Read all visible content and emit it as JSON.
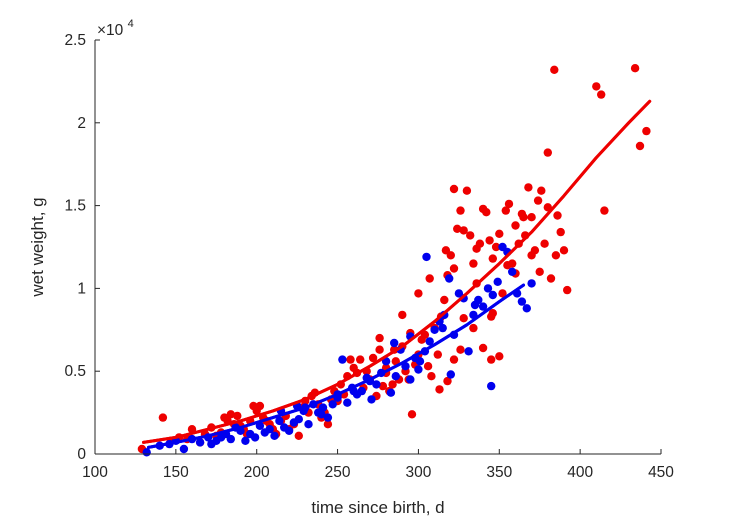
{
  "chart_data": {
    "type": "scatter",
    "xlabel": "time since birth, d",
    "ylabel": "wet weight, g",
    "exponent_label": "×10",
    "exponent_power": "4",
    "xlim": [
      100,
      450
    ],
    "ylim": [
      0,
      25000
    ],
    "xticks": [
      100,
      150,
      200,
      250,
      300,
      350,
      400,
      450
    ],
    "xtick_labels": [
      "100",
      "150",
      "200",
      "250",
      "300",
      "350",
      "400",
      "450"
    ],
    "yticks": [
      0,
      5000,
      10000,
      15000,
      20000,
      25000
    ],
    "ytick_labels": [
      "0",
      "0.5",
      "1",
      "1.5",
      "2",
      "2.5"
    ],
    "grid": false,
    "series": [
      {
        "color": "#ee0000",
        "points": [
          [
            129,
            300
          ],
          [
            142,
            2200
          ],
          [
            147,
            800
          ],
          [
            152,
            1000
          ],
          [
            157,
            900
          ],
          [
            160,
            1500
          ],
          [
            165,
            700
          ],
          [
            168,
            1200
          ],
          [
            172,
            1600
          ],
          [
            175,
            1100
          ],
          [
            178,
            1300
          ],
          [
            180,
            2200
          ],
          [
            182,
            2000
          ],
          [
            184,
            2400
          ],
          [
            186,
            1800
          ],
          [
            188,
            2300
          ],
          [
            190,
            1700
          ],
          [
            192,
            1500
          ],
          [
            194,
            1200
          ],
          [
            196,
            2000
          ],
          [
            198,
            2900
          ],
          [
            200,
            2600
          ],
          [
            202,
            2900
          ],
          [
            204,
            2200
          ],
          [
            206,
            2000
          ],
          [
            208,
            1800
          ],
          [
            210,
            1500
          ],
          [
            212,
            1200
          ],
          [
            215,
            2000
          ],
          [
            218,
            2300
          ],
          [
            220,
            1500
          ],
          [
            223,
            1800
          ],
          [
            226,
            1100
          ],
          [
            228,
            2800
          ],
          [
            230,
            3200
          ],
          [
            232,
            2500
          ],
          [
            234,
            3500
          ],
          [
            236,
            3700
          ],
          [
            238,
            3000
          ],
          [
            240,
            2200
          ],
          [
            242,
            2500
          ],
          [
            244,
            1800
          ],
          [
            246,
            3300
          ],
          [
            248,
            3800
          ],
          [
            250,
            3200
          ],
          [
            252,
            4200
          ],
          [
            254,
            3600
          ],
          [
            256,
            4700
          ],
          [
            258,
            5700
          ],
          [
            260,
            5200
          ],
          [
            262,
            4900
          ],
          [
            264,
            5700
          ],
          [
            266,
            4000
          ],
          [
            268,
            5000
          ],
          [
            270,
            4500
          ],
          [
            272,
            5800
          ],
          [
            274,
            3500
          ],
          [
            276,
            6300
          ],
          [
            278,
            4100
          ],
          [
            280,
            4900
          ],
          [
            282,
            3800
          ],
          [
            284,
            4200
          ],
          [
            286,
            5600
          ],
          [
            288,
            4500
          ],
          [
            290,
            6500
          ],
          [
            292,
            5000
          ],
          [
            294,
            4500
          ],
          [
            296,
            2400
          ],
          [
            298,
            5400
          ],
          [
            300,
            6000
          ],
          [
            302,
            6900
          ],
          [
            304,
            7200
          ],
          [
            306,
            5300
          ],
          [
            308,
            4700
          ],
          [
            310,
            7600
          ],
          [
            312,
            6000
          ],
          [
            314,
            8300
          ],
          [
            316,
            9300
          ],
          [
            318,
            10800
          ],
          [
            320,
            12000
          ],
          [
            322,
            11200
          ],
          [
            324,
            13600
          ],
          [
            326,
            14700
          ],
          [
            328,
            13500
          ],
          [
            330,
            15900
          ],
          [
            332,
            13200
          ],
          [
            334,
            11500
          ],
          [
            336,
            10300
          ],
          [
            338,
            12700
          ],
          [
            340,
            14800
          ],
          [
            342,
            14600
          ],
          [
            344,
            12900
          ],
          [
            346,
            11800
          ],
          [
            348,
            12500
          ],
          [
            350,
            13300
          ],
          [
            352,
            9700
          ],
          [
            354,
            14700
          ],
          [
            356,
            15100
          ],
          [
            358,
            11500
          ],
          [
            360,
            13800
          ],
          [
            362,
            12700
          ],
          [
            364,
            14500
          ],
          [
            366,
            13200
          ],
          [
            368,
            16100
          ],
          [
            370,
            14300
          ],
          [
            372,
            12300
          ],
          [
            374,
            15300
          ],
          [
            376,
            15900
          ],
          [
            378,
            12700
          ],
          [
            380,
            14900
          ],
          [
            382,
            10600
          ],
          [
            384,
            23200
          ],
          [
            386,
            14400
          ],
          [
            388,
            13400
          ],
          [
            390,
            12300
          ],
          [
            392,
            9900
          ],
          [
            410,
            22200
          ],
          [
            413,
            21700
          ],
          [
            415,
            14700
          ],
          [
            434,
            23300
          ],
          [
            437,
            18600
          ],
          [
            441,
            19500
          ],
          [
            307,
            10600
          ],
          [
            317,
            12300
          ],
          [
            322,
            16000
          ],
          [
            336,
            12400
          ],
          [
            345,
            8300
          ],
          [
            355,
            11400
          ],
          [
            360,
            10900
          ],
          [
            365,
            14300
          ],
          [
            370,
            12000
          ],
          [
            375,
            11000
          ],
          [
            380,
            18200
          ],
          [
            385,
            12000
          ],
          [
            300,
            9700
          ],
          [
            295,
            7300
          ],
          [
            290,
            8400
          ],
          [
            285,
            6300
          ],
          [
            280,
            5200
          ],
          [
            276,
            7000
          ],
          [
            313,
            3900
          ],
          [
            318,
            4400
          ],
          [
            322,
            5700
          ],
          [
            328,
            8200
          ],
          [
            334,
            7600
          ],
          [
            340,
            6400
          ],
          [
            346,
            8500
          ],
          [
            350,
            5900
          ],
          [
            326,
            6300
          ],
          [
            345,
            5700
          ]
        ]
      },
      {
        "color": "#0000ee",
        "points": [
          [
            132,
            100
          ],
          [
            140,
            500
          ],
          [
            146,
            600
          ],
          [
            150,
            800
          ],
          [
            155,
            300
          ],
          [
            160,
            900
          ],
          [
            165,
            700
          ],
          [
            170,
            1000
          ],
          [
            172,
            600
          ],
          [
            175,
            800
          ],
          [
            178,
            1000
          ],
          [
            181,
            1200
          ],
          [
            184,
            900
          ],
          [
            187,
            1600
          ],
          [
            190,
            1400
          ],
          [
            193,
            800
          ],
          [
            196,
            1200
          ],
          [
            199,
            1000
          ],
          [
            202,
            1700
          ],
          [
            205,
            1300
          ],
          [
            208,
            1500
          ],
          [
            211,
            1100
          ],
          [
            214,
            2000
          ],
          [
            217,
            1600
          ],
          [
            220,
            1400
          ],
          [
            223,
            1900
          ],
          [
            226,
            2100
          ],
          [
            229,
            2600
          ],
          [
            232,
            1800
          ],
          [
            235,
            3000
          ],
          [
            238,
            2500
          ],
          [
            241,
            2800
          ],
          [
            244,
            2200
          ],
          [
            247,
            3000
          ],
          [
            250,
            3600
          ],
          [
            253,
            5700
          ],
          [
            256,
            3100
          ],
          [
            259,
            4000
          ],
          [
            262,
            3600
          ],
          [
            265,
            3800
          ],
          [
            268,
            4600
          ],
          [
            271,
            3300
          ],
          [
            274,
            4200
          ],
          [
            277,
            4900
          ],
          [
            280,
            5600
          ],
          [
            283,
            3700
          ],
          [
            286,
            4700
          ],
          [
            289,
            6300
          ],
          [
            292,
            5300
          ],
          [
            295,
            7100
          ],
          [
            298,
            5800
          ],
          [
            301,
            5600
          ],
          [
            304,
            6200
          ],
          [
            307,
            6800
          ],
          [
            310,
            7500
          ],
          [
            313,
            8000
          ],
          [
            316,
            8400
          ],
          [
            319,
            10600
          ],
          [
            322,
            7200
          ],
          [
            325,
            9700
          ],
          [
            328,
            9400
          ],
          [
            331,
            6200
          ],
          [
            334,
            8400
          ],
          [
            337,
            9300
          ],
          [
            340,
            8900
          ],
          [
            343,
            10000
          ],
          [
            346,
            9600
          ],
          [
            349,
            10400
          ],
          [
            352,
            12500
          ],
          [
            355,
            12200
          ],
          [
            358,
            11000
          ],
          [
            361,
            9700
          ],
          [
            364,
            9200
          ],
          [
            367,
            8800
          ],
          [
            370,
            10300
          ],
          [
            305,
            11900
          ],
          [
            345,
            4100
          ],
          [
            320,
            4800
          ],
          [
            270,
            4400
          ],
          [
            260,
            3800
          ],
          [
            240,
            2400
          ],
          [
            230,
            2800
          ],
          [
            215,
            2600
          ],
          [
            225,
            2900
          ],
          [
            250,
            3400
          ],
          [
            285,
            6700
          ],
          [
            295,
            4500
          ],
          [
            300,
            5100
          ],
          [
            315,
            7600
          ],
          [
            335,
            9000
          ]
        ]
      }
    ],
    "fits": [
      {
        "color": "#ee0000",
        "x": [
          130,
          150,
          170,
          190,
          210,
          230,
          250,
          270,
          290,
          310,
          330,
          350,
          370,
          390,
          410,
          430,
          443
        ],
        "y": [
          700,
          1000,
          1500,
          2000,
          2600,
          3300,
          4200,
          5300,
          6500,
          8000,
          9700,
          11500,
          13400,
          15600,
          17900,
          20000,
          21300
        ]
      },
      {
        "color": "#0000ee",
        "x": [
          133,
          150,
          170,
          190,
          210,
          230,
          250,
          270,
          290,
          310,
          330,
          350,
          365
        ],
        "y": [
          400,
          700,
          1100,
          1600,
          2200,
          2800,
          3600,
          4500,
          5500,
          6600,
          7800,
          9200,
          10200
        ]
      }
    ]
  }
}
